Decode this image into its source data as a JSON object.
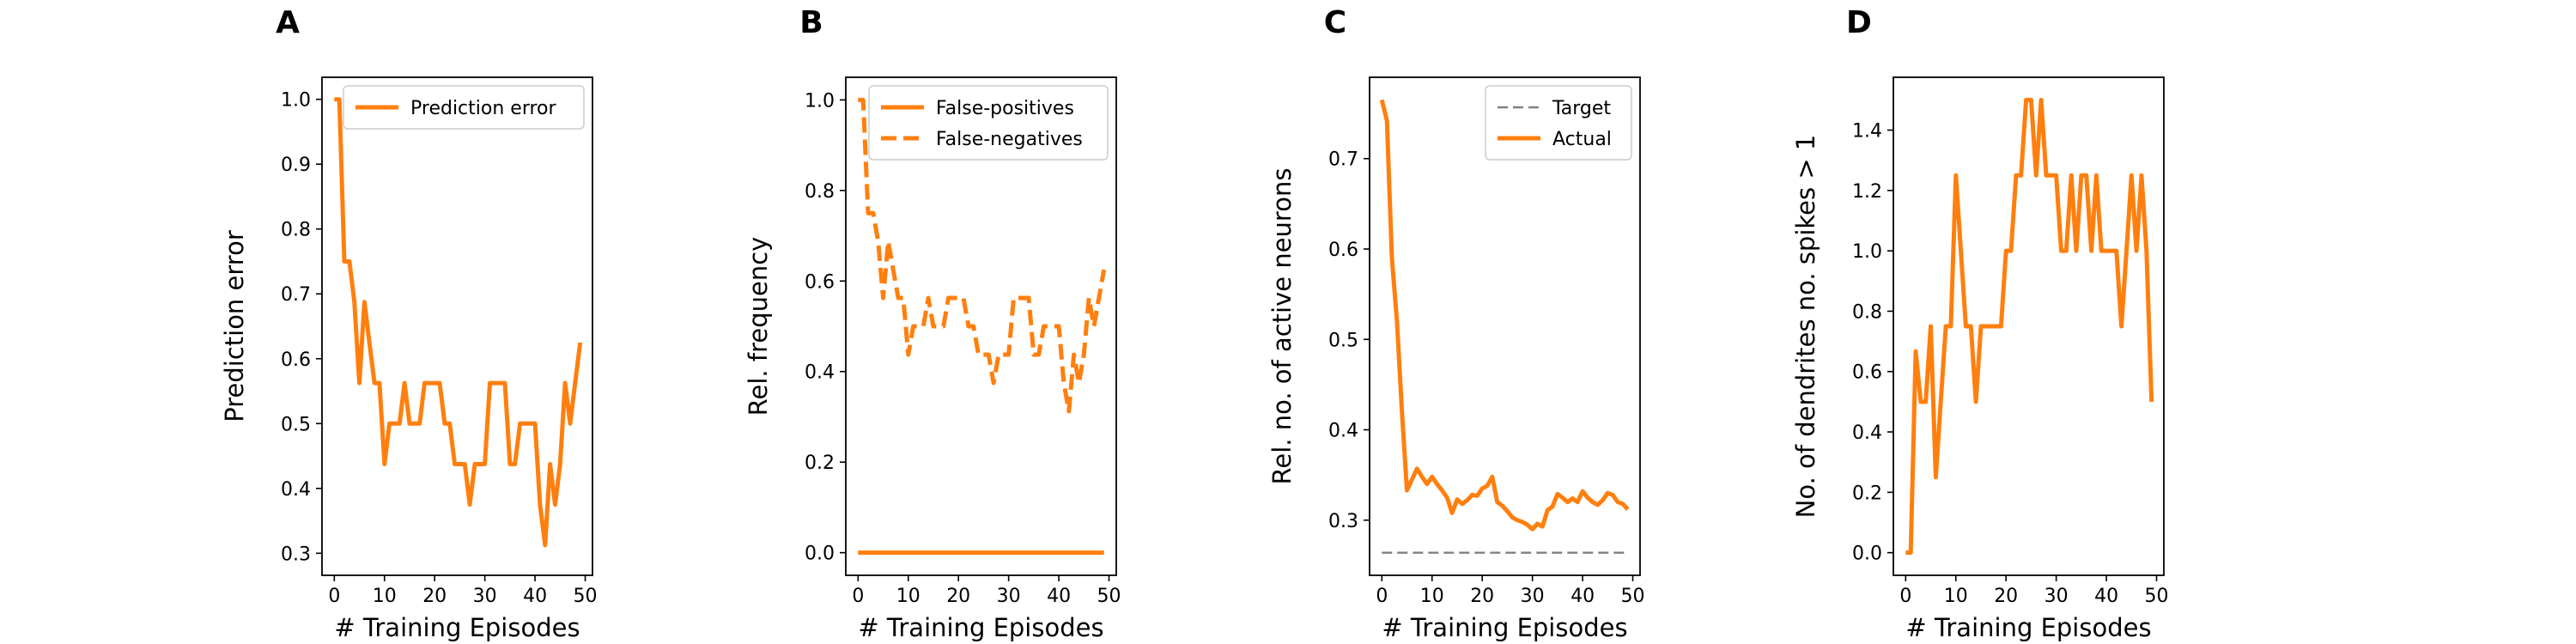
{
  "chart_data": [
    {
      "panel": "A",
      "type": "line",
      "xlabel": "# Training Episodes",
      "ylabel": "Prediction error",
      "xlim": [
        -2.45,
        51.45
      ],
      "ylim": [
        0.266,
        1.034
      ],
      "xticks": [
        0,
        10,
        20,
        30,
        40,
        50
      ],
      "yticks": [
        0.3,
        0.4,
        0.5,
        0.6,
        0.7,
        0.8,
        0.9,
        1.0
      ],
      "legend": "top-right",
      "colors": {
        "series": "#ff7f0e",
        "spine": "#000000"
      },
      "series": [
        {
          "name": "Prediction error",
          "style": "solid",
          "x": [
            0,
            1,
            2,
            3,
            4,
            5,
            6,
            7,
            8,
            9,
            10,
            11,
            12,
            13,
            14,
            15,
            16,
            17,
            18,
            19,
            20,
            21,
            22,
            23,
            24,
            25,
            26,
            27,
            28,
            29,
            30,
            31,
            32,
            33,
            34,
            35,
            36,
            37,
            38,
            39,
            40,
            41,
            42,
            43,
            44,
            45,
            46,
            47,
            48,
            49
          ],
          "y": [
            1.0,
            1.0,
            0.75,
            0.75,
            0.6875,
            0.5625,
            0.6875,
            0.625,
            0.5625,
            0.5625,
            0.4375,
            0.5,
            0.5,
            0.5,
            0.5625,
            0.5,
            0.5,
            0.5,
            0.5625,
            0.5625,
            0.5625,
            0.5625,
            0.5,
            0.5,
            0.4375,
            0.4375,
            0.4375,
            0.375,
            0.4375,
            0.4375,
            0.4375,
            0.5625,
            0.5625,
            0.5625,
            0.5625,
            0.4375,
            0.4375,
            0.5,
            0.5,
            0.5,
            0.5,
            0.375,
            0.3125,
            0.4375,
            0.375,
            0.4375,
            0.5625,
            0.5,
            0.5625,
            0.625
          ]
        }
      ]
    },
    {
      "panel": "B",
      "type": "line",
      "xlabel": "# Training Episodes",
      "ylabel": "Rel. frequency",
      "xlim": [
        -2.45,
        51.45
      ],
      "ylim": [
        -0.05,
        1.05
      ],
      "xticks": [
        0,
        10,
        20,
        30,
        40,
        50
      ],
      "yticks": [
        0.0,
        0.2,
        0.4,
        0.6,
        0.8,
        1.0
      ],
      "legend": "top-right",
      "colors": {
        "series": "#ff7f0e",
        "spine": "#000000"
      },
      "series": [
        {
          "name": "False-positives",
          "style": "solid",
          "x": [
            0,
            1,
            2,
            3,
            4,
            5,
            6,
            7,
            8,
            9,
            10,
            11,
            12,
            13,
            14,
            15,
            16,
            17,
            18,
            19,
            20,
            21,
            22,
            23,
            24,
            25,
            26,
            27,
            28,
            29,
            30,
            31,
            32,
            33,
            34,
            35,
            36,
            37,
            38,
            39,
            40,
            41,
            42,
            43,
            44,
            45,
            46,
            47,
            48,
            49
          ],
          "y": [
            0,
            0,
            0,
            0,
            0,
            0,
            0,
            0,
            0,
            0,
            0,
            0,
            0,
            0,
            0,
            0,
            0,
            0,
            0,
            0,
            0,
            0,
            0,
            0,
            0,
            0,
            0,
            0,
            0,
            0,
            0,
            0,
            0,
            0,
            0,
            0,
            0,
            0,
            0,
            0,
            0,
            0,
            0,
            0,
            0,
            0,
            0,
            0,
            0,
            0
          ]
        },
        {
          "name": "False-negatives",
          "style": "dashed",
          "x": [
            0,
            1,
            2,
            3,
            4,
            5,
            6,
            7,
            8,
            9,
            10,
            11,
            12,
            13,
            14,
            15,
            16,
            17,
            18,
            19,
            20,
            21,
            22,
            23,
            24,
            25,
            26,
            27,
            28,
            29,
            30,
            31,
            32,
            33,
            34,
            35,
            36,
            37,
            38,
            39,
            40,
            41,
            42,
            43,
            44,
            45,
            46,
            47,
            48,
            49
          ],
          "y": [
            1.0,
            1.0,
            0.75,
            0.75,
            0.6875,
            0.5625,
            0.6875,
            0.625,
            0.5625,
            0.5625,
            0.4375,
            0.5,
            0.5,
            0.5,
            0.5625,
            0.5,
            0.5,
            0.5,
            0.5625,
            0.5625,
            0.5625,
            0.5625,
            0.5,
            0.5,
            0.4375,
            0.4375,
            0.4375,
            0.375,
            0.4375,
            0.4375,
            0.4375,
            0.5625,
            0.5625,
            0.5625,
            0.5625,
            0.4375,
            0.4375,
            0.5,
            0.5,
            0.5,
            0.5,
            0.375,
            0.3125,
            0.4375,
            0.375,
            0.4375,
            0.5625,
            0.5,
            0.5625,
            0.625
          ]
        }
      ]
    },
    {
      "panel": "C",
      "type": "line",
      "xlabel": "# Training Episodes",
      "ylabel": "Rel. no. of active neurons",
      "xlim": [
        -2.45,
        51.45
      ],
      "ylim": [
        0.239,
        0.79
      ],
      "xticks": [
        0,
        10,
        20,
        30,
        40,
        50
      ],
      "yticks": [
        0.3,
        0.4,
        0.5,
        0.6,
        0.7
      ],
      "legend": "top-right",
      "colors": {
        "series": "#ff7f0e",
        "target": "#808080",
        "spine": "#000000"
      },
      "series": [
        {
          "name": "Target",
          "style": "dashed",
          "x": [
            0,
            49
          ],
          "y": [
            0.264,
            0.264
          ]
        },
        {
          "name": "Actual",
          "style": "solid",
          "x": [
            0,
            1,
            2,
            3,
            4,
            5,
            6,
            7,
            8,
            9,
            10,
            11,
            12,
            13,
            14,
            15,
            16,
            17,
            18,
            19,
            20,
            21,
            22,
            23,
            24,
            25,
            26,
            27,
            28,
            29,
            30,
            31,
            32,
            33,
            34,
            35,
            36,
            37,
            38,
            39,
            40,
            41,
            42,
            43,
            44,
            45,
            46,
            47,
            48,
            49
          ],
          "y": [
            0.765,
            0.742,
            0.59,
            0.52,
            0.42,
            0.333,
            0.345,
            0.357,
            0.348,
            0.34,
            0.348,
            0.34,
            0.333,
            0.325,
            0.308,
            0.323,
            0.318,
            0.322,
            0.328,
            0.327,
            0.335,
            0.338,
            0.348,
            0.32,
            0.316,
            0.31,
            0.303,
            0.3,
            0.298,
            0.295,
            0.29,
            0.296,
            0.293,
            0.311,
            0.315,
            0.329,
            0.325,
            0.32,
            0.324,
            0.32,
            0.332,
            0.325,
            0.32,
            0.317,
            0.322,
            0.33,
            0.328,
            0.32,
            0.318,
            0.312
          ]
        }
      ]
    },
    {
      "panel": "D",
      "type": "line",
      "xlabel": "# Training Episodes",
      "ylabel": "No. of dendrites no. spikes > 1",
      "xlim": [
        -2.45,
        51.45
      ],
      "ylim": [
        -0.075,
        1.575
      ],
      "xticks": [
        0,
        10,
        20,
        30,
        40,
        50
      ],
      "yticks": [
        0.0,
        0.2,
        0.4,
        0.6,
        0.8,
        1.0,
        1.2,
        1.4
      ],
      "legend": "none",
      "colors": {
        "series": "#ff7f0e",
        "spine": "#000000"
      },
      "series": [
        {
          "style": "solid",
          "x": [
            0,
            1,
            2,
            3,
            4,
            5,
            6,
            7,
            8,
            9,
            10,
            11,
            12,
            13,
            14,
            15,
            16,
            17,
            18,
            19,
            20,
            21,
            22,
            23,
            24,
            25,
            26,
            27,
            28,
            29,
            30,
            31,
            32,
            33,
            34,
            35,
            36,
            37,
            38,
            39,
            40,
            41,
            42,
            43,
            44,
            45,
            46,
            47,
            48,
            49
          ],
          "y": [
            0,
            0,
            0.667,
            0.5,
            0.5,
            0.75,
            0.25,
            0.5,
            0.75,
            0.75,
            1.25,
            1.0,
            0.75,
            0.75,
            0.5,
            0.75,
            0.75,
            0.75,
            0.75,
            0.75,
            1.0,
            1.0,
            1.25,
            1.25,
            1.5,
            1.5,
            1.25,
            1.5,
            1.25,
            1.25,
            1.25,
            1.0,
            1.0,
            1.25,
            1.0,
            1.25,
            1.25,
            1.0,
            1.25,
            1.0,
            1.0,
            1.0,
            1.0,
            0.75,
            1.0,
            1.25,
            1.0,
            1.25,
            1.0,
            0.5
          ]
        }
      ]
    }
  ]
}
